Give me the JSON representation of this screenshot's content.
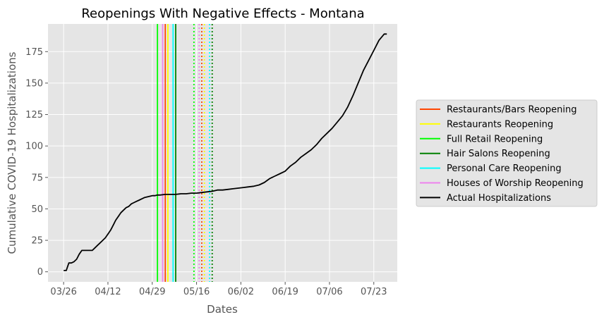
{
  "chart_data": {
    "type": "line",
    "title": "Reopenings With Negative Effects - Montana",
    "xlabel": "Dates",
    "ylabel": "Cumulative COVID-19 Hospitalizations",
    "x_tick_labels": [
      "03/26",
      "04/12",
      "04/29",
      "05/16",
      "06/02",
      "06/19",
      "07/06",
      "07/23"
    ],
    "y_ticks": [
      0,
      25,
      50,
      75,
      100,
      125,
      150,
      175
    ],
    "xlim": [
      "03/20",
      "08/01"
    ],
    "ylim": [
      -8,
      197
    ],
    "grid": true,
    "legend_position": "right",
    "series": [
      {
        "name": "Actual Hospitalizations",
        "color": "#000000",
        "x": [
          "03/26",
          "03/27",
          "03/28",
          "03/29",
          "03/30",
          "03/31",
          "04/01",
          "04/02",
          "04/03",
          "04/04",
          "04/05",
          "04/06",
          "04/07",
          "04/08",
          "04/09",
          "04/10",
          "04/11",
          "04/12",
          "04/13",
          "04/14",
          "04/15",
          "04/16",
          "04/17",
          "04/18",
          "04/19",
          "04/20",
          "04/21",
          "04/22",
          "04/23",
          "04/24",
          "04/25",
          "04/26",
          "04/27",
          "04/28",
          "04/29",
          "04/30",
          "05/01",
          "05/02",
          "05/04",
          "05/06",
          "05/08",
          "05/10",
          "05/12",
          "05/14",
          "05/16",
          "05/18",
          "05/20",
          "05/22",
          "05/24",
          "05/26",
          "05/28",
          "05/30",
          "06/01",
          "06/03",
          "06/05",
          "06/07",
          "06/09",
          "06/11",
          "06/13",
          "06/15",
          "06/17",
          "06/19",
          "06/21",
          "06/23",
          "06/25",
          "06/27",
          "06/29",
          "07/01",
          "07/03",
          "07/05",
          "07/07",
          "07/09",
          "07/11",
          "07/13",
          "07/15",
          "07/17",
          "07/19",
          "07/21",
          "07/23",
          "07/25",
          "07/27",
          "07/28"
        ],
        "values": [
          1,
          1,
          7,
          7,
          8,
          10,
          14,
          17,
          17,
          17,
          17,
          17,
          19,
          21,
          23,
          25,
          27,
          30,
          33,
          37,
          41,
          44,
          47,
          49,
          51,
          52,
          54,
          55,
          56,
          57,
          58,
          59,
          59.5,
          60,
          60.5,
          60.5,
          61,
          61,
          61.5,
          61.5,
          61.5,
          62,
          62,
          62.5,
          62.5,
          63,
          63.5,
          64,
          65,
          65,
          65.5,
          66,
          66.5,
          67,
          67.5,
          68,
          69,
          71,
          74,
          76,
          78,
          80,
          84,
          87,
          91,
          94,
          97,
          101,
          106,
          110,
          114,
          119,
          124,
          131,
          140,
          150,
          160,
          168,
          176,
          184,
          189,
          189
        ]
      }
    ],
    "vertical_lines": [
      {
        "name": "Restaurants/Bars Reopening",
        "color": "#ff4500",
        "style": "solid",
        "x": "05/04"
      },
      {
        "name": "Restaurants Reopening",
        "color": "#ffff00",
        "style": "solid",
        "x": "05/05"
      },
      {
        "name": "Full Retail Reopening",
        "color": "#00ff00",
        "style": "solid",
        "x": "05/01"
      },
      {
        "name": "Hair Salons Reopening",
        "color": "#008000",
        "style": "solid",
        "x": "05/08"
      },
      {
        "name": "Personal Care Reopening",
        "color": "#00ffff",
        "style": "solid",
        "x": "05/07"
      },
      {
        "name": "Houses of Worship Reopening",
        "color": "#ee82ee",
        "style": "solid",
        "x": "05/03"
      },
      {
        "name": "Restaurants/Bars Reopening",
        "color": "#ff4500",
        "style": "dotted",
        "x": "05/18"
      },
      {
        "name": "Restaurants Reopening",
        "color": "#ffff00",
        "style": "dotted",
        "x": "05/19"
      },
      {
        "name": "Full Retail Reopening",
        "color": "#00ff00",
        "style": "dotted",
        "x": "05/15"
      },
      {
        "name": "Hair Salons Reopening",
        "color": "#008000",
        "style": "dotted",
        "x": "05/22"
      },
      {
        "name": "Personal Care Reopening",
        "color": "#00ffff",
        "style": "dotted",
        "x": "05/21"
      },
      {
        "name": "Houses of Worship Reopening",
        "color": "#ee82ee",
        "style": "dotted",
        "x": "05/17"
      }
    ],
    "legend": [
      {
        "label": "Restaurants/Bars Reopening",
        "color": "#ff4500"
      },
      {
        "label": "Restaurants Reopening",
        "color": "#ffff00"
      },
      {
        "label": "Full Retail Reopening",
        "color": "#00ff00"
      },
      {
        "label": "Hair Salons Reopening",
        "color": "#008000"
      },
      {
        "label": "Personal Care Reopening",
        "color": "#00ffff"
      },
      {
        "label": "Houses of Worship Reopening",
        "color": "#ee82ee"
      },
      {
        "label": "Actual Hospitalizations",
        "color": "#000000"
      }
    ]
  }
}
